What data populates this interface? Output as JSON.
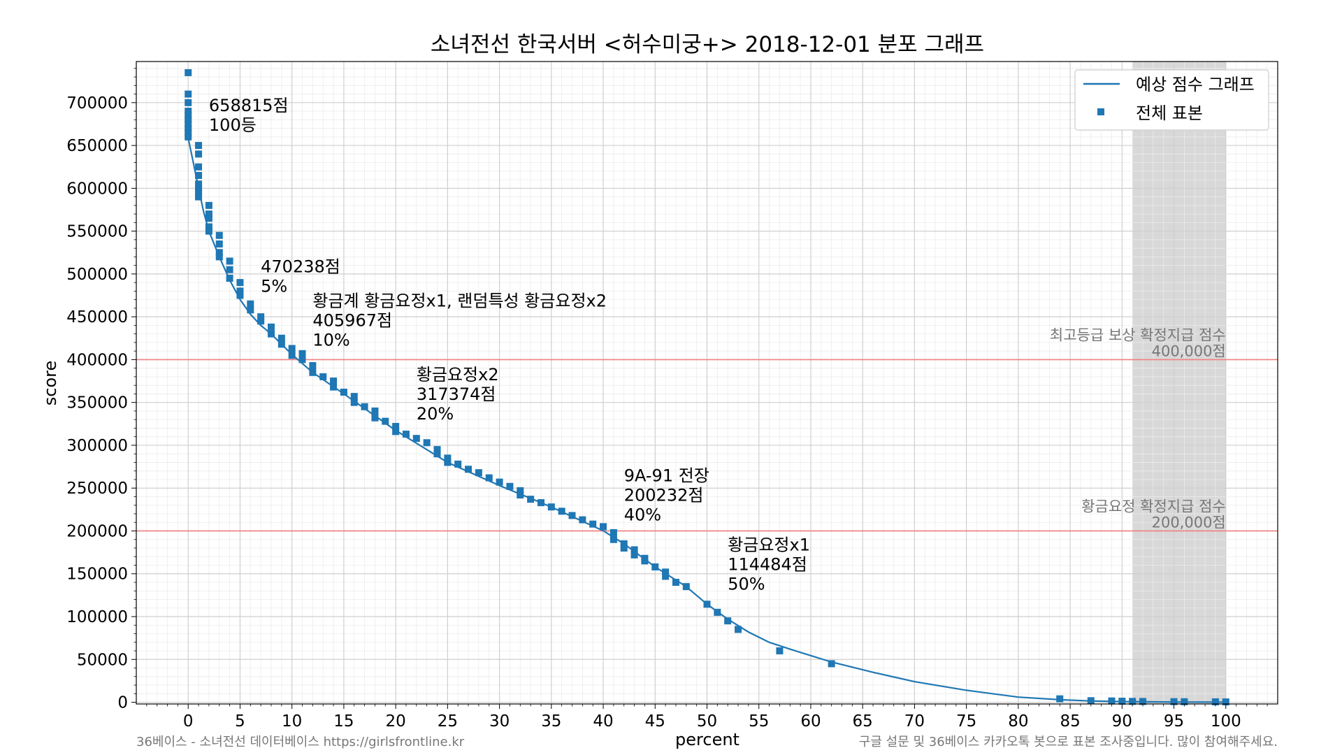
{
  "chart_data": {
    "type": "scatter",
    "title": "소녀전선 한국서버 <허수미궁+> 2018-12-01 분포 그래프",
    "xlabel": "percent",
    "ylabel": "score",
    "xlim": [
      -5,
      105
    ],
    "ylim": [
      -2000,
      748000
    ],
    "xticks": [
      0,
      5,
      10,
      15,
      20,
      25,
      30,
      35,
      40,
      45,
      50,
      55,
      60,
      65,
      70,
      75,
      80,
      85,
      90,
      95,
      100
    ],
    "yticks": [
      0,
      50000,
      100000,
      150000,
      200000,
      250000,
      300000,
      350000,
      400000,
      450000,
      500000,
      550000,
      600000,
      650000,
      700000
    ],
    "grid": true,
    "legend": {
      "placement": "top-right",
      "entries": [
        {
          "label": "예상 점수 그래프",
          "marker": "line"
        },
        {
          "label": "전체 표본",
          "marker": "square"
        }
      ]
    },
    "series": [
      {
        "name": "예상 점수 그래프",
        "kind": "line",
        "color": "#1f77b4",
        "x": [
          0,
          0.5,
          1,
          1.5,
          2,
          3,
          4,
          5,
          6,
          7,
          8,
          10,
          12,
          15,
          20,
          25,
          30,
          35,
          40,
          42,
          45,
          48,
          50,
          52,
          54,
          56,
          58,
          62,
          66,
          70,
          75,
          80,
          84,
          87,
          90,
          95,
          100
        ],
        "y": [
          658815,
          630000,
          600000,
          572000,
          550000,
          520000,
          493000,
          470238,
          453000,
          440000,
          430000,
          405967,
          385000,
          360000,
          317374,
          280000,
          253000,
          228000,
          200232,
          185000,
          158000,
          135000,
          114484,
          97000,
          82000,
          70000,
          62000,
          47000,
          35000,
          24000,
          14000,
          6000,
          3000,
          1500,
          800,
          300,
          100
        ]
      },
      {
        "name": "전체 표본",
        "kind": "scatter",
        "color": "#1f77b4",
        "x": [
          0,
          0,
          0,
          0,
          0,
          0,
          0,
          0,
          0,
          0,
          1,
          1,
          1,
          1,
          1,
          1,
          1,
          1,
          2,
          2,
          2,
          2,
          2,
          3,
          3,
          3,
          3,
          4,
          4,
          4,
          5,
          5,
          5,
          6,
          6,
          7,
          7,
          8,
          8,
          9,
          9,
          10,
          10,
          11,
          11,
          12,
          12,
          13,
          14,
          14,
          15,
          16,
          16,
          17,
          18,
          18,
          19,
          20,
          20,
          21,
          22,
          23,
          24,
          24,
          25,
          25,
          26,
          27,
          28,
          29,
          30,
          31,
          32,
          32,
          33,
          34,
          35,
          36,
          37,
          38,
          39,
          40,
          41,
          41,
          42,
          42,
          43,
          43,
          44,
          44,
          45,
          46,
          46,
          47,
          48,
          50,
          51,
          52,
          53,
          57,
          62,
          84,
          87,
          89,
          90,
          91,
          92,
          95,
          96,
          99,
          100
        ],
        "y": [
          735000,
          710000,
          700000,
          690000,
          685000,
          680000,
          675000,
          670000,
          665000,
          660000,
          650000,
          640000,
          625000,
          615000,
          605000,
          600000,
          595000,
          590000,
          580000,
          570000,
          565000,
          555000,
          550000,
          545000,
          535000,
          525000,
          520000,
          515000,
          505000,
          495000,
          490000,
          480000,
          475000,
          465000,
          458000,
          450000,
          445000,
          438000,
          430000,
          425000,
          418000,
          413000,
          405000,
          407000,
          400000,
          393000,
          385000,
          380000,
          375000,
          368000,
          362000,
          357000,
          350000,
          345000,
          340000,
          332000,
          328000,
          322000,
          316000,
          313000,
          308000,
          303000,
          295000,
          290000,
          285000,
          280000,
          278000,
          272000,
          268000,
          262000,
          257000,
          252000,
          247000,
          242000,
          237000,
          233000,
          228000,
          223000,
          218000,
          213000,
          208000,
          205000,
          198000,
          190000,
          185000,
          180000,
          178000,
          172000,
          168000,
          165000,
          158000,
          152000,
          147000,
          140000,
          135000,
          114484,
          105000,
          95000,
          85000,
          60000,
          45000,
          4000,
          1800,
          1500,
          1200,
          1000,
          900,
          700,
          600,
          500,
          400
        ]
      }
    ],
    "reference_lines": [
      {
        "y": 400000,
        "color": "#f08080",
        "label_line1": "최고등급 보상 확정지급 점수",
        "label_line2": "400,000점"
      },
      {
        "y": 200000,
        "color": "#f08080",
        "label_line1": "황금요정 확정지급 점수",
        "label_line2": "200,000점"
      }
    ],
    "shaded_region": {
      "x_from": 91,
      "x_to": 100,
      "color": "#d8d8d8"
    },
    "annotations": [
      {
        "x": 2,
        "y": 690000,
        "lines": [
          "658815점",
          "100등"
        ]
      },
      {
        "x": 7,
        "y": 502000,
        "lines": [
          "470238점",
          "5%"
        ]
      },
      {
        "x": 12,
        "y": 462000,
        "lines": [
          "황금계 황금요정x1, 랜덤특성 황금요정x2",
          "405967점",
          "10%"
        ]
      },
      {
        "x": 22,
        "y": 376000,
        "lines": [
          "황금요정x2",
          "317374점",
          "20%"
        ]
      },
      {
        "x": 42,
        "y": 258000,
        "lines": [
          "9A-91 전장",
          "200232점",
          "40%"
        ]
      },
      {
        "x": 52,
        "y": 177000,
        "lines": [
          "황금요정x1",
          "114484점",
          "50%"
        ]
      }
    ]
  },
  "footer": {
    "left": "36베이스 - 소녀전선 데이터베이스 https://girlsfrontline.kr",
    "right": "구글 설문 및 36베이스 카카오톡 봇으로 표본 조사중입니다. 많이 참여해주세요."
  }
}
